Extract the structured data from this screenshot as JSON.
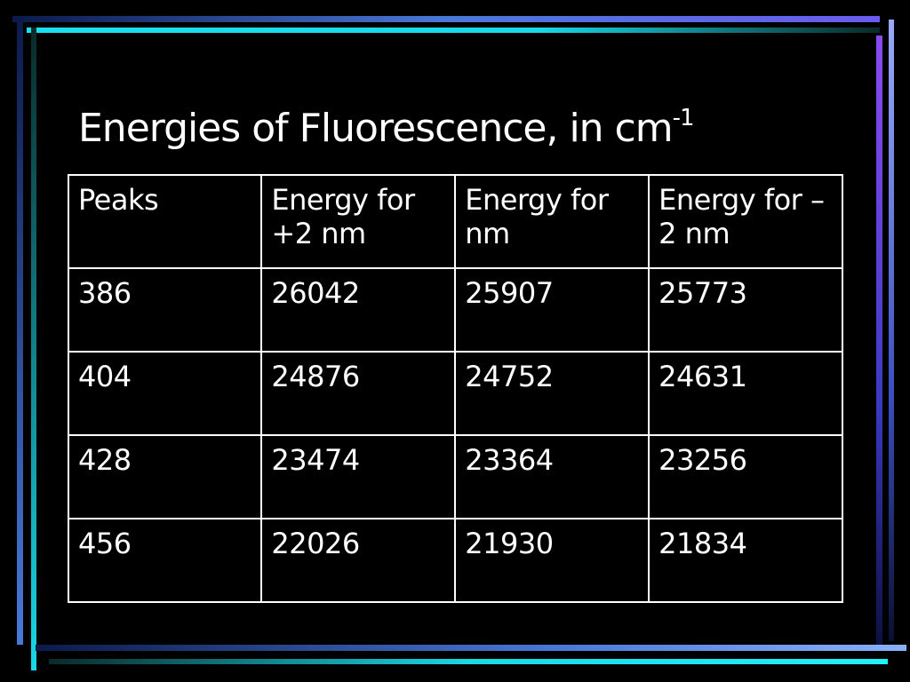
{
  "title": {
    "text": "Energies of Fluorescence, in cm",
    "superscript": "-1"
  },
  "table": {
    "header": [
      "Peaks",
      "Energy for +2 nm",
      "Energy for nm",
      "Energy for –2 nm"
    ],
    "rows": [
      [
        386,
        26042,
        25907,
        25773
      ],
      [
        404,
        24876,
        24752,
        24631
      ],
      [
        428,
        23474,
        23364,
        23256
      ],
      [
        456,
        22026,
        21930,
        21834
      ]
    ]
  }
}
